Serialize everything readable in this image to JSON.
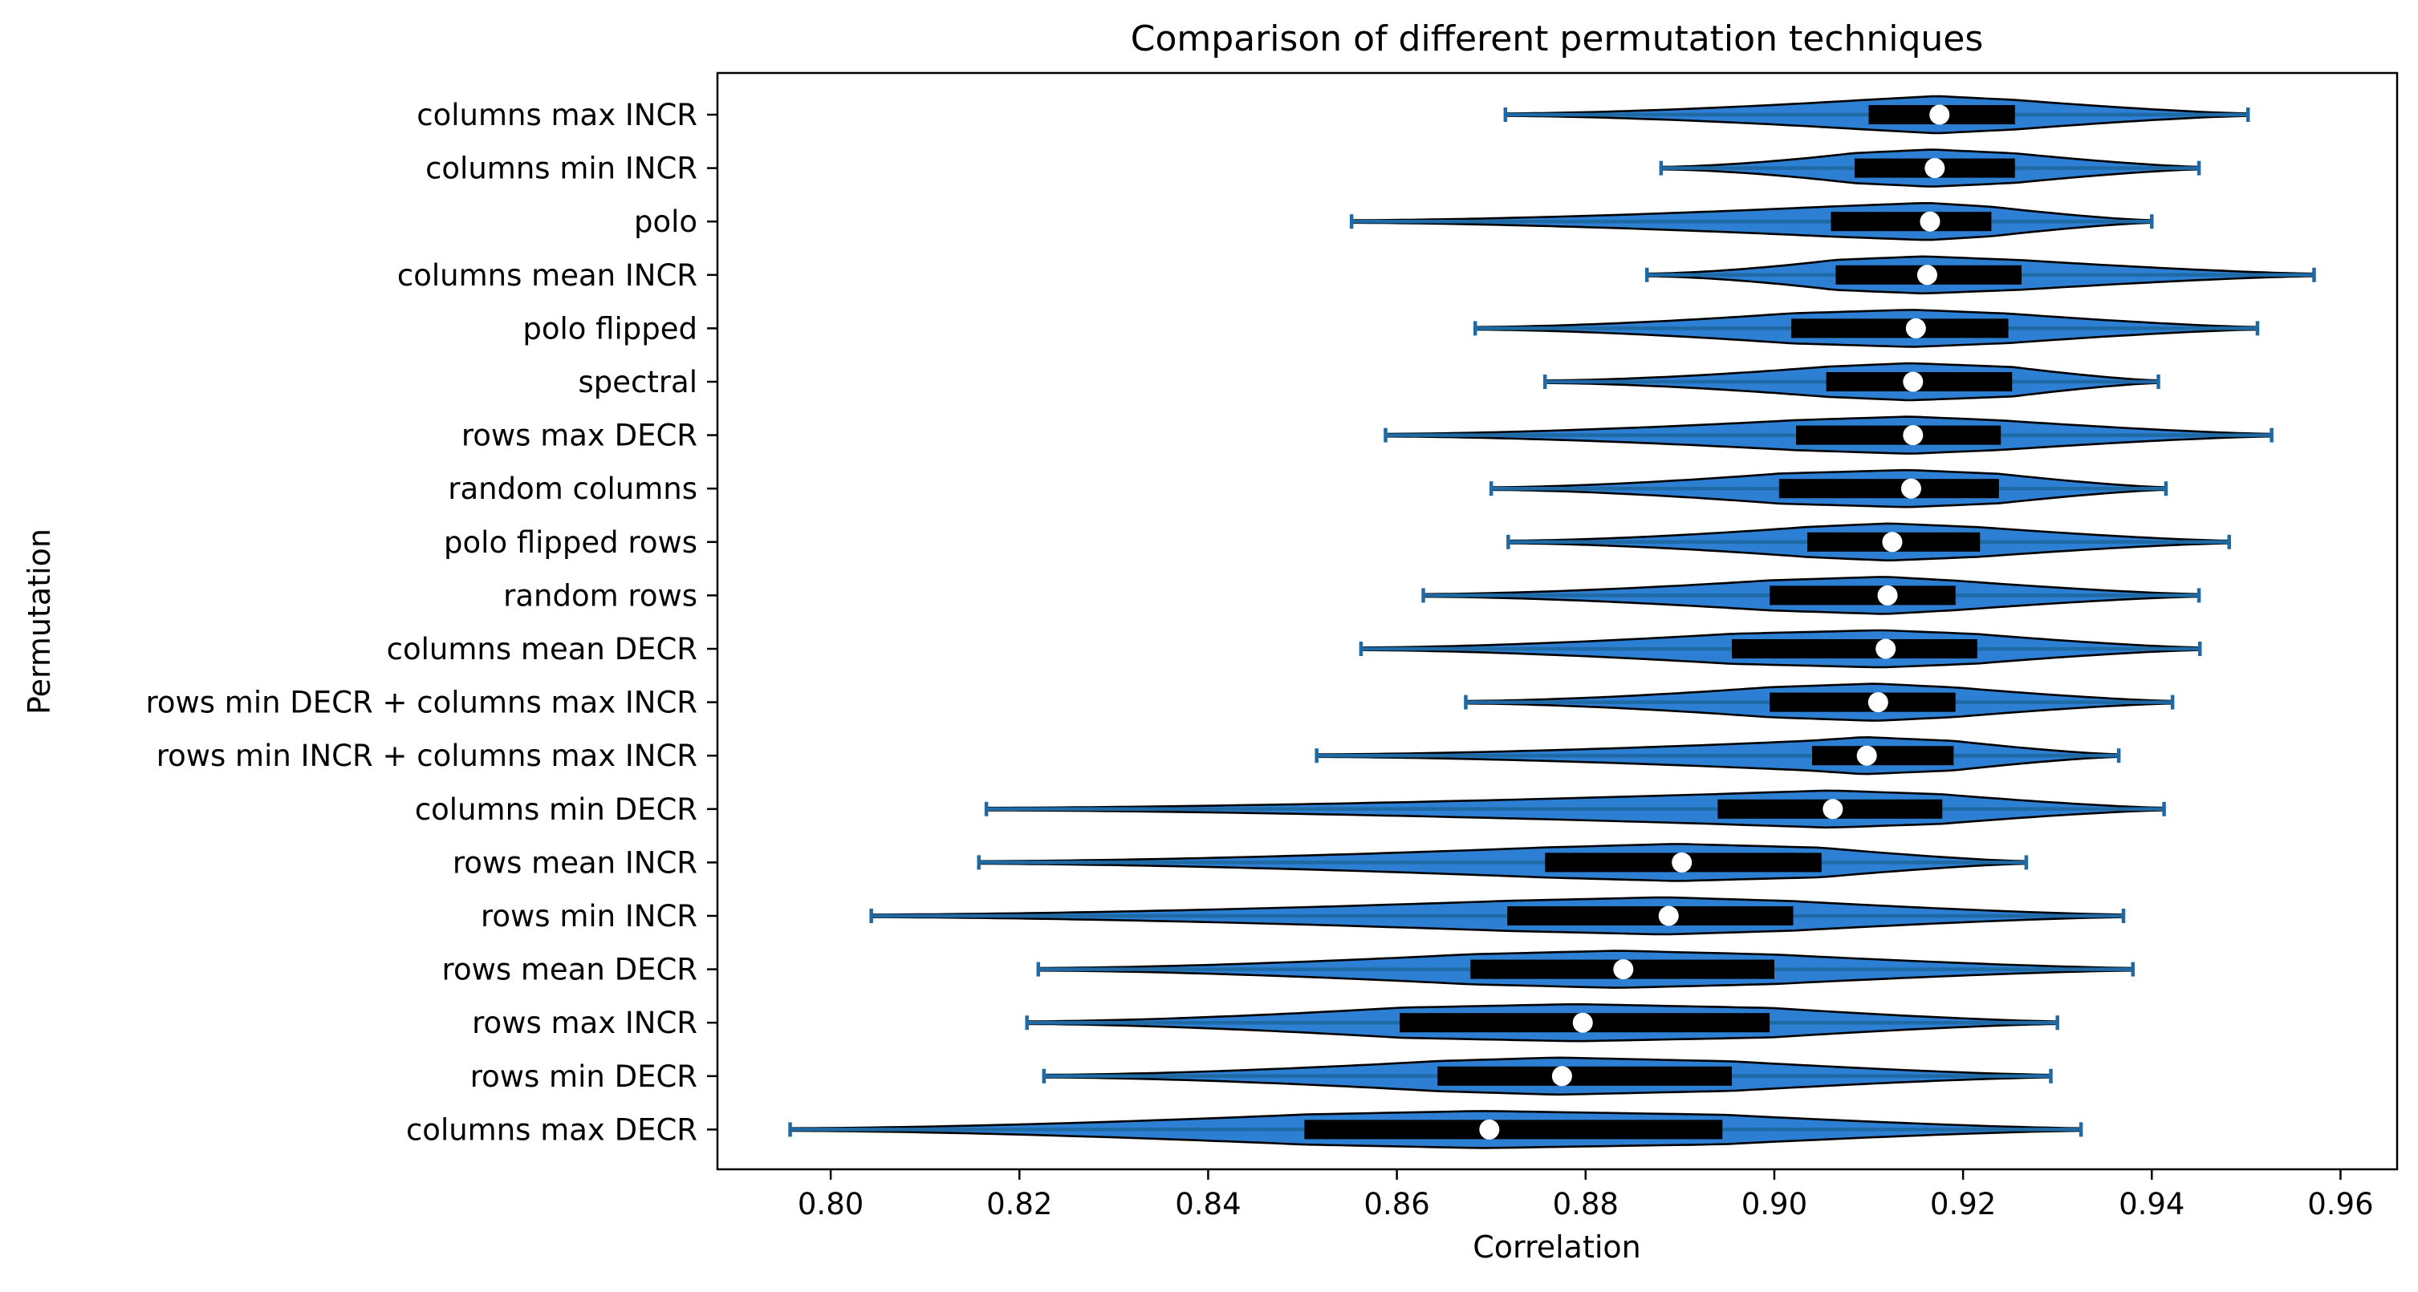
{
  "chart_data": {
    "type": "violin",
    "title": "Comparison of different permutation techniques",
    "xlabel": "Correlation",
    "ylabel": "Permutation",
    "xlim": [
      0.788,
      0.966
    ],
    "xticks": [
      "0.80",
      "0.82",
      "0.84",
      "0.86",
      "0.88",
      "0.90",
      "0.92",
      "0.94",
      "0.96"
    ],
    "xtick_values": [
      0.8,
      0.82,
      0.84,
      0.86,
      0.88,
      0.9,
      0.92,
      0.94,
      0.96
    ],
    "grid": false,
    "legend": "none",
    "orientation": "horizontal",
    "colors": {
      "violin_fill": "#2d7fd4",
      "violin_edge": "#000000",
      "whisker": "#1f6aa5",
      "iqr_box": "#000000",
      "median": "#ffffff"
    },
    "series": [
      {
        "label": "columns max INCR",
        "min": 0.8715,
        "q1": 0.91,
        "median": 0.9175,
        "q3": 0.9255,
        "max": 0.9502
      },
      {
        "label": "columns min INCR",
        "min": 0.888,
        "q1": 0.9085,
        "median": 0.917,
        "q3": 0.9255,
        "max": 0.945
      },
      {
        "label": "polo",
        "min": 0.8552,
        "q1": 0.906,
        "median": 0.9165,
        "q3": 0.923,
        "max": 0.94
      },
      {
        "label": "columns mean INCR",
        "min": 0.8865,
        "q1": 0.9065,
        "median": 0.9162,
        "q3": 0.9262,
        "max": 0.9572
      },
      {
        "label": "polo flipped",
        "min": 0.8683,
        "q1": 0.9018,
        "median": 0.915,
        "q3": 0.9248,
        "max": 0.9512
      },
      {
        "label": "spectral",
        "min": 0.8757,
        "q1": 0.9055,
        "median": 0.9147,
        "q3": 0.9252,
        "max": 0.9407
      },
      {
        "label": "rows max DECR",
        "min": 0.8588,
        "q1": 0.9023,
        "median": 0.9147,
        "q3": 0.924,
        "max": 0.9527
      },
      {
        "label": "random columns",
        "min": 0.87,
        "q1": 0.9005,
        "median": 0.9145,
        "q3": 0.9238,
        "max": 0.9415
      },
      {
        "label": "polo flipped rows",
        "min": 0.8718,
        "q1": 0.9035,
        "median": 0.9125,
        "q3": 0.9218,
        "max": 0.9482
      },
      {
        "label": "random rows",
        "min": 0.8628,
        "q1": 0.8995,
        "median": 0.912,
        "q3": 0.9192,
        "max": 0.945
      },
      {
        "label": "columns mean DECR",
        "min": 0.8562,
        "q1": 0.8955,
        "median": 0.9118,
        "q3": 0.9215,
        "max": 0.9451
      },
      {
        "label": "rows min DECR + columns max INCR",
        "min": 0.8673,
        "q1": 0.8995,
        "median": 0.911,
        "q3": 0.9192,
        "max": 0.9422
      },
      {
        "label": "rows min INCR + columns max INCR",
        "min": 0.8515,
        "q1": 0.904,
        "median": 0.9098,
        "q3": 0.919,
        "max": 0.9365
      },
      {
        "label": "columns min DECR",
        "min": 0.8165,
        "q1": 0.894,
        "median": 0.9062,
        "q3": 0.9178,
        "max": 0.9413
      },
      {
        "label": "rows mean INCR",
        "min": 0.8157,
        "q1": 0.8757,
        "median": 0.8902,
        "q3": 0.905,
        "max": 0.9267
      },
      {
        "label": "rows min INCR",
        "min": 0.8043,
        "q1": 0.8717,
        "median": 0.8888,
        "q3": 0.902,
        "max": 0.937
      },
      {
        "label": "rows mean DECR",
        "min": 0.822,
        "q1": 0.8678,
        "median": 0.884,
        "q3": 0.9,
        "max": 0.938
      },
      {
        "label": "rows max INCR",
        "min": 0.8208,
        "q1": 0.8603,
        "median": 0.8797,
        "q3": 0.8995,
        "max": 0.93
      },
      {
        "label": "rows min DECR",
        "min": 0.8226,
        "q1": 0.8643,
        "median": 0.8775,
        "q3": 0.8955,
        "max": 0.9293
      },
      {
        "label": "columns max DECR",
        "min": 0.7957,
        "q1": 0.8502,
        "median": 0.8698,
        "q3": 0.8945,
        "max": 0.9325
      }
    ]
  }
}
